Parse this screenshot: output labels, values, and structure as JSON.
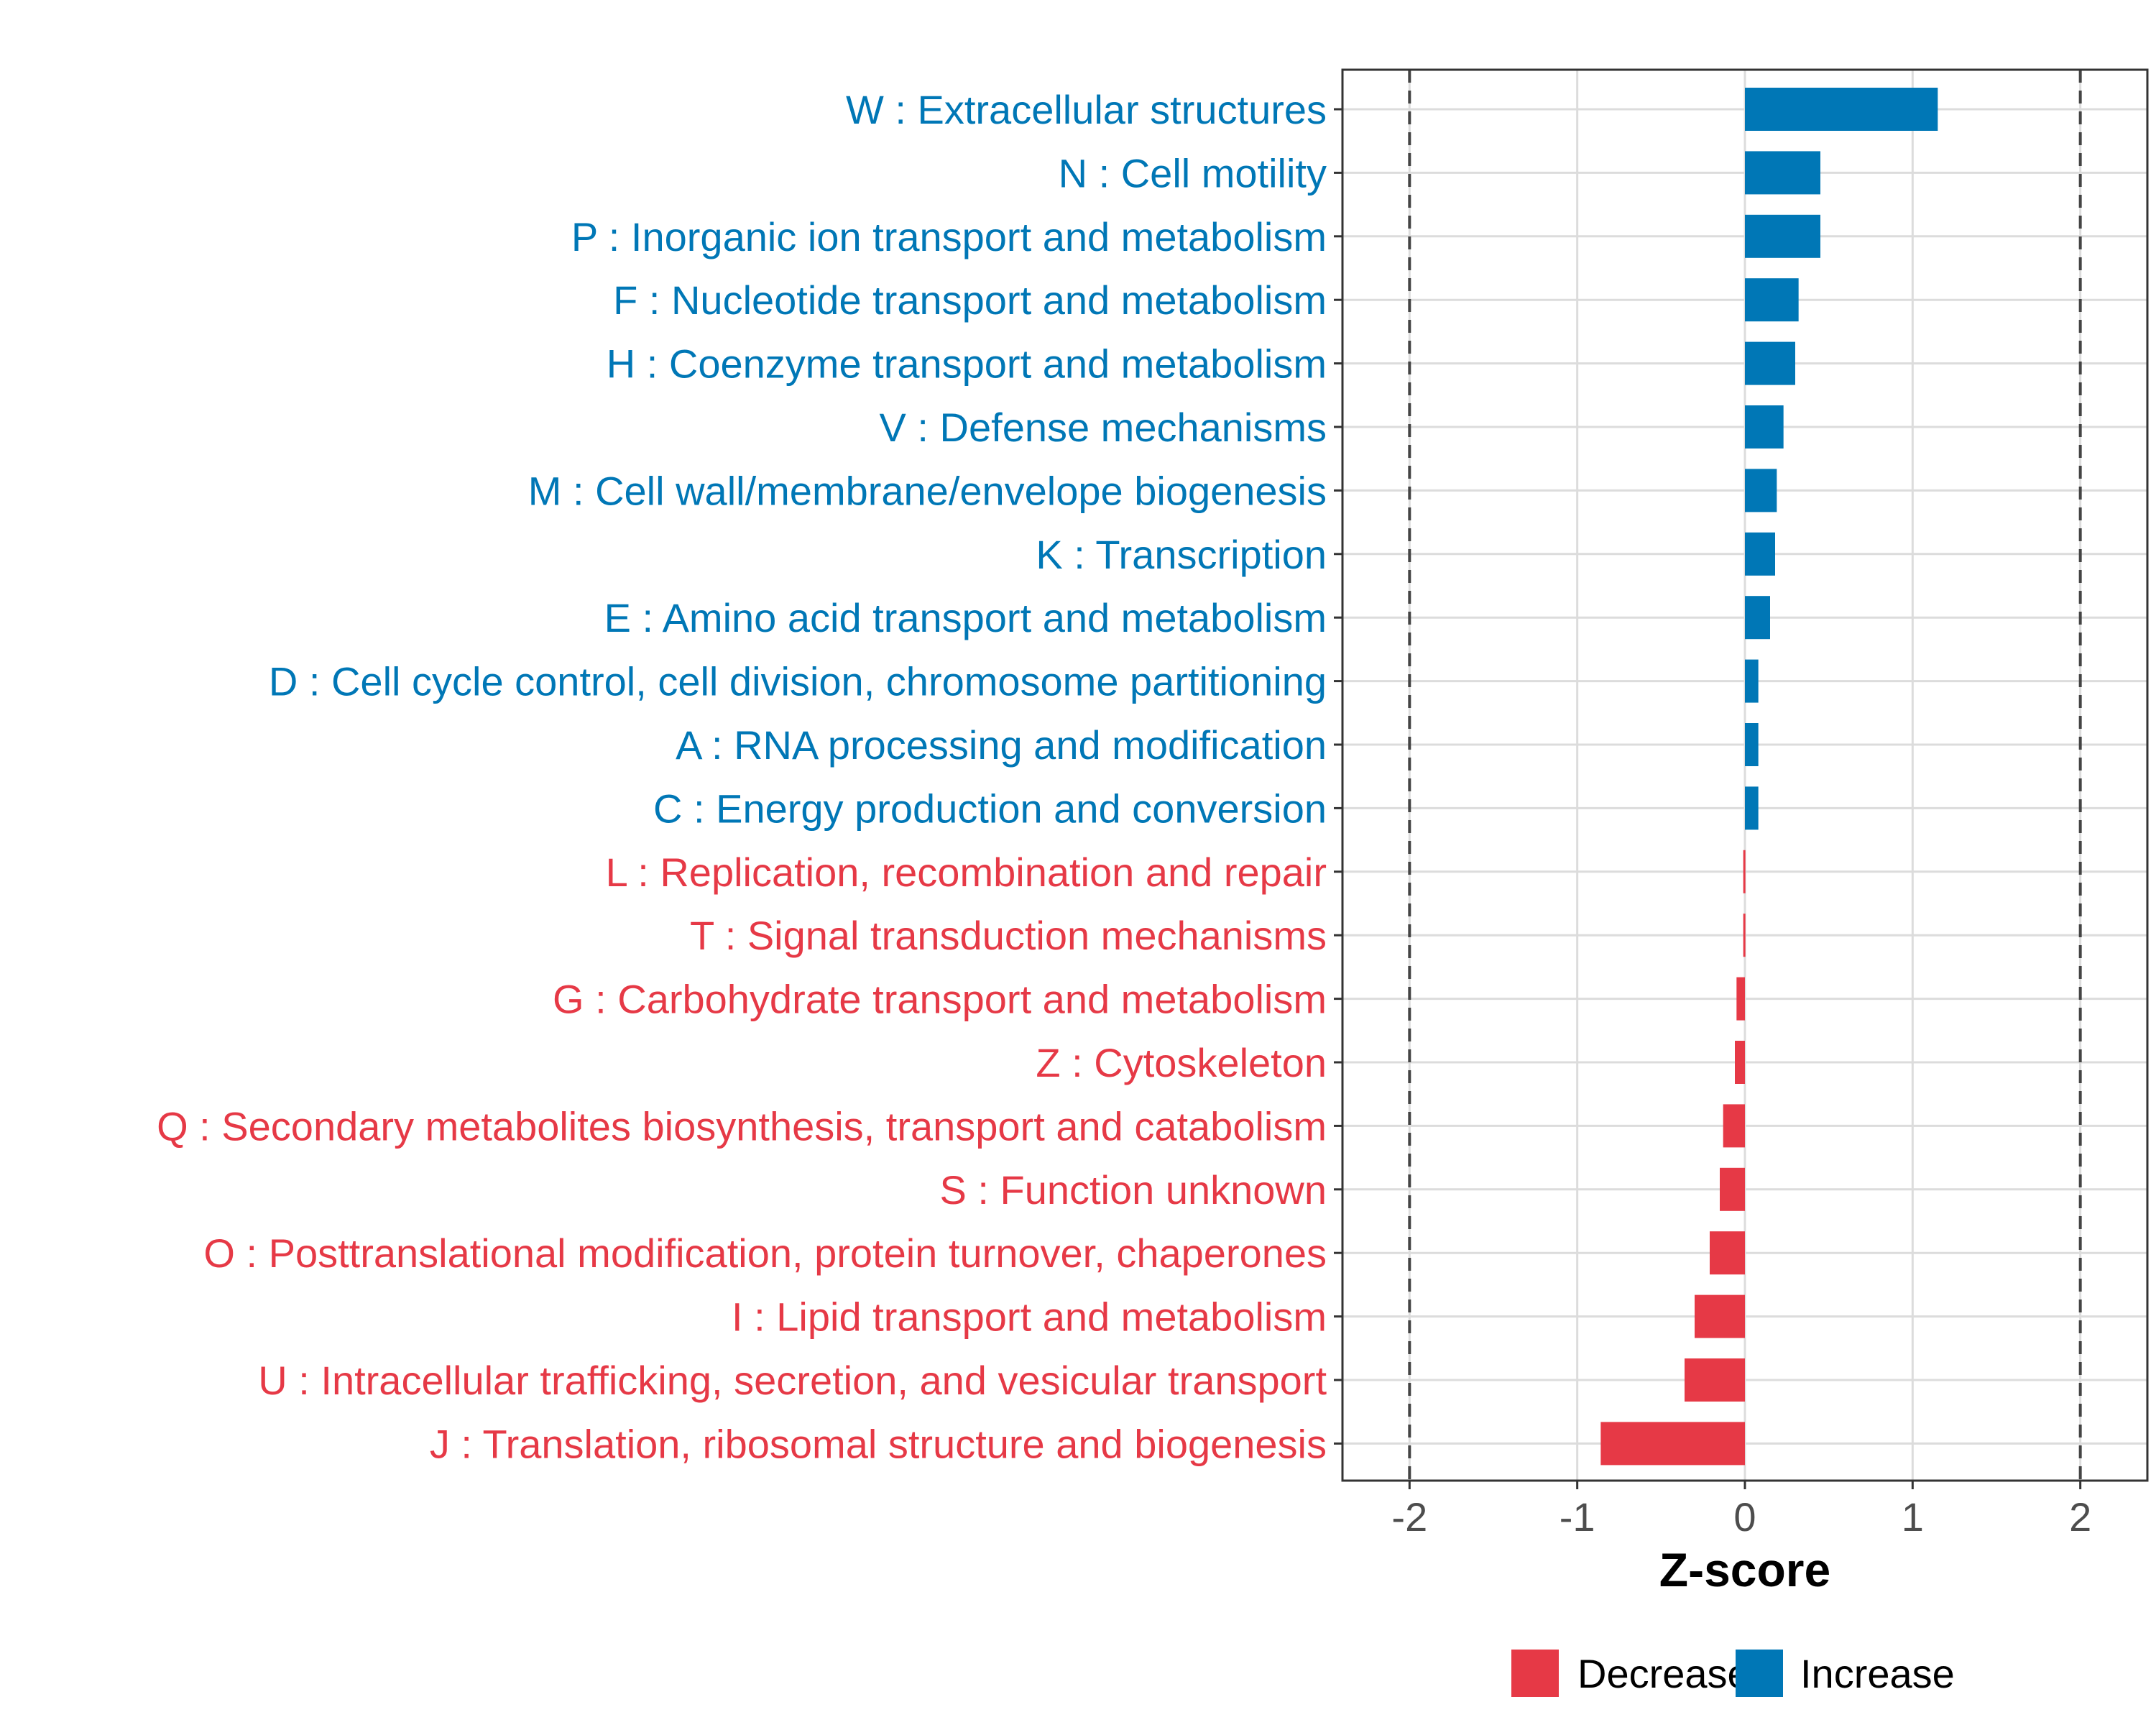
{
  "chart_data": {
    "type": "bar",
    "orientation": "horizontal",
    "xlabel": "Z-score",
    "xlim": [
      -2.4,
      2.4
    ],
    "xticks": [
      -2,
      -1,
      0,
      1,
      2
    ],
    "tick_labels": [
      "-2",
      "-1",
      "0",
      "1",
      "2"
    ],
    "reference_lines": [
      -2,
      2
    ],
    "grid": true,
    "legend_position": "bottom",
    "legend": [
      {
        "name": "Decrease",
        "color": "#E63946"
      },
      {
        "name": "Increase",
        "color": "#0077B6"
      }
    ],
    "categories": [
      "W : Extracellular structures",
      "N : Cell motility",
      "P : Inorganic ion transport and metabolism",
      "F : Nucleotide transport and metabolism",
      "H : Coenzyme transport and metabolism",
      "V : Defense mechanisms",
      "M : Cell wall/membrane/envelope biogenesis",
      "K : Transcription",
      "E : Amino acid transport and metabolism",
      "D : Cell cycle control, cell division, chromosome partitioning",
      "A : RNA processing and modification",
      "C : Energy production and conversion",
      "L : Replication, recombination and repair",
      "T : Signal transduction mechanisms",
      "G : Carbohydrate transport and metabolism",
      "Z : Cytoskeleton",
      "Q : Secondary metabolites biosynthesis, transport and catabolism",
      "S : Function unknown",
      "O : Posttranslational modification, protein turnover, chaperones",
      "I : Lipid transport and metabolism",
      "U : Intracellular trafficking, secretion, and vesicular transport",
      "J : Translation, ribosomal structure and biogenesis"
    ],
    "values": [
      1.15,
      0.45,
      0.45,
      0.32,
      0.3,
      0.23,
      0.19,
      0.18,
      0.15,
      0.08,
      0.08,
      0.08,
      -0.01,
      -0.01,
      -0.05,
      -0.06,
      -0.13,
      -0.15,
      -0.21,
      -0.3,
      -0.36,
      -0.86
    ],
    "groups": [
      "Increase",
      "Increase",
      "Increase",
      "Increase",
      "Increase",
      "Increase",
      "Increase",
      "Increase",
      "Increase",
      "Increase",
      "Increase",
      "Increase",
      "Decrease",
      "Decrease",
      "Decrease",
      "Decrease",
      "Decrease",
      "Decrease",
      "Decrease",
      "Decrease",
      "Decrease",
      "Decrease"
    ]
  }
}
